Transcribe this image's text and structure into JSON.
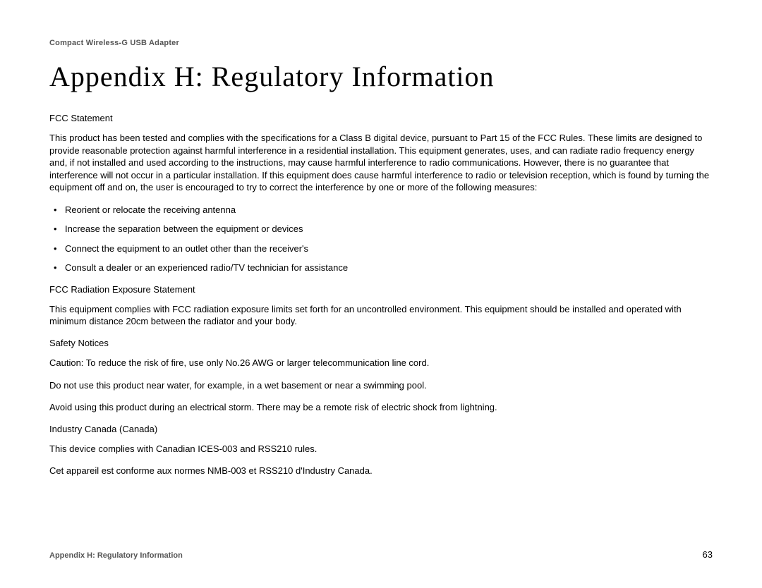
{
  "header": {
    "product": "Compact Wireless-G USB Adapter"
  },
  "title": "Appendix H: Regulatory Information",
  "sections": {
    "fcc_heading": "FCC Statement",
    "fcc_body": "This product has been tested and complies with the specifications for a Class B digital device, pursuant to Part 15 of the FCC Rules. These limits are designed to provide reasonable protection against harmful interference in a residential installation. This equipment generates, uses, and can radiate radio frequency energy and, if not installed and used according to the instructions, may cause harmful interference to radio communications. However, there is no guarantee that interference will not occur in a particular installation. If this equipment does cause harmful interference to radio or television reception, which is found by turning the equipment off and on, the user is encouraged to try to correct the interference by one or more of the following measures:",
    "bullets": [
      "Reorient or relocate the receiving antenna",
      "Increase the separation between the equipment or devices",
      "Connect the equipment to an outlet other than the receiver's",
      "Consult a dealer or an experienced radio/TV technician for assistance"
    ],
    "fcc_rad_heading": "FCC Radiation Exposure Statement",
    "fcc_rad_body": "This equipment complies with FCC radiation exposure limits set forth for an uncontrolled environment. This equipment should be installed and operated with minimum distance 20cm between the radiator and your body.",
    "safety_heading": "Safety Notices",
    "safety_caution": "Caution: To reduce the risk of fire, use only No.26 AWG or larger telecommunication line cord.",
    "safety_water": "Do not use this product near water, for example, in a wet basement or near a swimming pool.",
    "safety_storm": "Avoid using this product during an electrical storm.  There may be a remote risk of electric shock from lightning.",
    "ic_heading": "Industry Canada (Canada)",
    "ic_body_en": "This device complies with Canadian ICES-003 and RSS210 rules.",
    "ic_body_fr": "Cet appareil est conforme aux normes NMB-003 et RSS210 d'Industry Canada."
  },
  "footer": {
    "left": "Appendix H: Regulatory Information",
    "page": "63"
  }
}
